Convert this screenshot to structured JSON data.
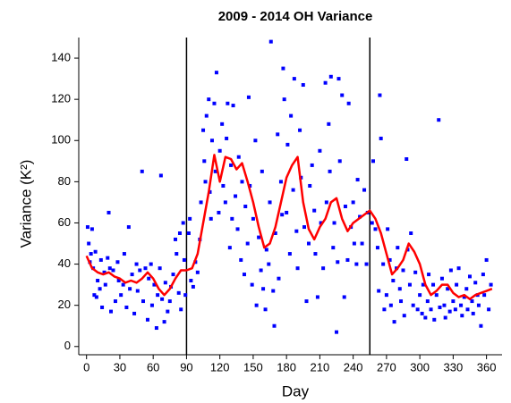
{
  "chart_data": {
    "type": "scatter",
    "title": "2009 - 2014 OH Variance",
    "x_label": "Day",
    "y_label": "Variance (K²)",
    "xlim": [
      -7,
      374
    ],
    "ylim": [
      -4,
      150
    ],
    "xticks": [
      0,
      30,
      60,
      90,
      120,
      150,
      180,
      210,
      240,
      270,
      300,
      330,
      360
    ],
    "yticks": [
      0,
      20,
      40,
      60,
      80,
      100,
      120,
      140
    ],
    "vlines": [
      90,
      255
    ],
    "series": [
      {
        "type": "scatter",
        "color": "#0000ff",
        "x": [
          1,
          2,
          3,
          4,
          5,
          6,
          7,
          8,
          9,
          10,
          12,
          13,
          14,
          16,
          17,
          19,
          20,
          21,
          22,
          24,
          26,
          28,
          29,
          31,
          33,
          34,
          36,
          38,
          39,
          41,
          43,
          45,
          46,
          48,
          50,
          51,
          53,
          55,
          56,
          58,
          59,
          61,
          63,
          64,
          66,
          67,
          68,
          70,
          71,
          73,
          75,
          76,
          78,
          80,
          81,
          83,
          84,
          85,
          87,
          88,
          89,
          92,
          93,
          94,
          96,
          98,
          100,
          102,
          103,
          105,
          106,
          107,
          108,
          110,
          111,
          112,
          113,
          115,
          116,
          117,
          119,
          120,
          122,
          123,
          125,
          126,
          127,
          129,
          130,
          131,
          132,
          134,
          136,
          137,
          139,
          140,
          142,
          143,
          145,
          146,
          147,
          149,
          150,
          152,
          153,
          155,
          157,
          158,
          159,
          161,
          162,
          164,
          165,
          166,
          168,
          169,
          170,
          172,
          173,
          175,
          176,
          177,
          178,
          180,
          181,
          183,
          184,
          186,
          187,
          189,
          190,
          192,
          193,
          195,
          196,
          198,
          200,
          201,
          203,
          205,
          206,
          208,
          210,
          211,
          213,
          215,
          216,
          218,
          219,
          220,
          222,
          223,
          225,
          226,
          227,
          228,
          230,
          232,
          233,
          235,
          236,
          238,
          240,
          241,
          243,
          244,
          246,
          248,
          250,
          252,
          253,
          257,
          258,
          260,
          262,
          263,
          264,
          265,
          267,
          268,
          270,
          271,
          273,
          274,
          276,
          277,
          279,
          280,
          282,
          283,
          285,
          286,
          288,
          289,
          291,
          292,
          294,
          296,
          298,
          300,
          302,
          303,
          305,
          307,
          308,
          310,
          312,
          313,
          315,
          317,
          318,
          320,
          322,
          323,
          325,
          327,
          328,
          330,
          332,
          333,
          335,
          337,
          338,
          340,
          342,
          343,
          345,
          347,
          348,
          350,
          352,
          353,
          355,
          357,
          358,
          360,
          362,
          364
        ],
        "values": [
          58,
          50,
          41,
          45,
          57,
          38,
          25,
          46,
          24,
          32,
          28,
          42,
          19,
          36,
          30,
          43,
          65,
          38,
          17,
          37,
          22,
          41,
          32,
          25,
          30,
          45,
          19,
          58,
          28,
          35,
          16,
          40,
          27,
          37,
          85,
          22,
          38,
          13,
          33,
          40,
          20,
          30,
          9,
          25,
          38,
          83,
          23,
          12,
          31,
          17,
          22,
          29,
          35,
          52,
          45,
          26,
          55,
          18,
          60,
          42,
          25,
          55,
          62,
          32,
          29,
          41,
          36,
          52,
          70,
          105,
          90,
          80,
          112,
          120,
          75,
          62,
          100,
          118,
          85,
          133,
          65,
          95,
          108,
          78,
          70,
          101,
          118,
          48,
          88,
          62,
          117,
          73,
          57,
          92,
          42,
          80,
          35,
          68,
          50,
          121,
          78,
          30,
          62,
          100,
          20,
          53,
          37,
          85,
          28,
          18,
          47,
          40,
          70,
          148,
          27,
          10,
          55,
          103,
          33,
          80,
          64,
          135,
          120,
          65,
          98,
          45,
          112,
          76,
          130,
          56,
          38,
          105,
          82,
          127,
          58,
          22,
          50,
          78,
          88,
          66,
          45,
          24,
          95,
          60,
          38,
          128,
          70,
          108,
          85,
          131,
          48,
          60,
          7,
          41,
          130,
          90,
          122,
          24,
          68,
          42,
          118,
          58,
          70,
          50,
          40,
          81,
          63,
          50,
          76,
          40,
          65,
          60,
          90,
          57,
          48,
          27,
          122,
          101,
          40,
          18,
          25,
          57,
          42,
          20,
          32,
          12,
          38,
          48,
          28,
          22,
          37,
          15,
          91,
          47,
          30,
          55,
          20,
          36,
          18,
          25,
          16,
          30,
          14,
          22,
          35,
          18,
          30,
          13,
          25,
          110,
          19,
          33,
          20,
          14,
          28,
          17,
          37,
          22,
          18,
          30,
          38,
          20,
          15,
          24,
          28,
          18,
          34,
          22,
          16,
          31,
          25,
          20,
          10,
          35,
          25,
          42,
          18,
          30
        ]
      },
      {
        "type": "line",
        "color": "#ff0000",
        "x": [
          0,
          5,
          10,
          15,
          20,
          25,
          30,
          35,
          40,
          45,
          50,
          55,
          60,
          65,
          70,
          75,
          80,
          85,
          90,
          95,
          100,
          105,
          110,
          115,
          120,
          125,
          130,
          135,
          140,
          145,
          150,
          155,
          160,
          165,
          170,
          175,
          180,
          185,
          190,
          195,
          200,
          205,
          210,
          215,
          220,
          225,
          230,
          235,
          240,
          245,
          250,
          255,
          260,
          265,
          270,
          275,
          280,
          285,
          290,
          295,
          300,
          305,
          310,
          315,
          320,
          325,
          330,
          335,
          340,
          345,
          350,
          355,
          360,
          365
        ],
        "values": [
          44,
          38,
          36,
          35,
          36,
          34,
          33,
          31,
          32,
          31,
          33,
          36,
          33,
          28,
          25,
          28,
          33,
          37,
          37,
          38,
          45,
          60,
          75,
          93,
          80,
          92,
          91,
          86,
          89,
          80,
          70,
          58,
          48,
          50,
          58,
          70,
          82,
          88,
          92,
          70,
          57,
          52,
          58,
          62,
          70,
          72,
          62,
          56,
          60,
          62,
          64,
          66,
          62,
          55,
          45,
          35,
          38,
          42,
          50,
          46,
          40,
          30,
          25,
          27,
          30,
          30,
          26,
          24,
          25,
          23,
          25,
          26,
          27,
          28
        ]
      }
    ]
  }
}
